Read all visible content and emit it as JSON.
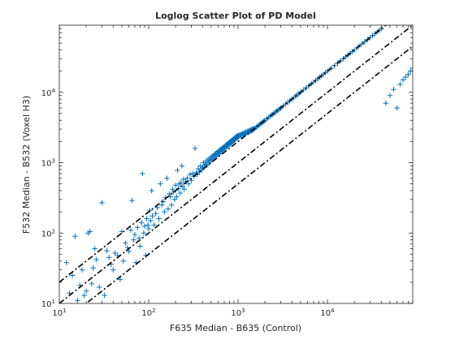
{
  "chart_data": {
    "type": "scatter",
    "title": "Loglog Scatter Plot of PD Model",
    "xlabel": "F635 Median - B635 (Control)",
    "ylabel": "F532 Median - B532 (Voxel H3)",
    "xscale": "log",
    "yscale": "log",
    "xlim": [
      10,
      90000
    ],
    "ylim": [
      10,
      90000
    ],
    "xticks": [
      {
        "value": 10,
        "base": "10",
        "exp": "1"
      },
      {
        "value": 100,
        "base": "10",
        "exp": "2"
      },
      {
        "value": 1000,
        "base": "10",
        "exp": "3"
      },
      {
        "value": 10000,
        "base": "10",
        "exp": "4"
      }
    ],
    "yticks": [
      {
        "value": 10,
        "base": "10",
        "exp": "1"
      },
      {
        "value": 100,
        "base": "10",
        "exp": "2"
      },
      {
        "value": 1000,
        "base": "10",
        "exp": "3"
      },
      {
        "value": 10000,
        "base": "10",
        "exp": "4"
      }
    ],
    "grid": false,
    "marker": "+",
    "series_color": "#0072bd",
    "line_color": "#000000",
    "fit_lines": [
      {
        "style": "dash-dot",
        "x": [
          10,
          90000
        ],
        "y": [
          10,
          90000
        ]
      },
      {
        "style": "dash-dot",
        "x": [
          10,
          90000
        ],
        "y": [
          20,
          180000
        ]
      },
      {
        "style": "dash-dot",
        "x": [
          10,
          90000
        ],
        "y": [
          5,
          45000
        ]
      }
    ],
    "series": [
      {
        "marker": "+",
        "points": [
          [
            12,
            38
          ],
          [
            13,
            14
          ],
          [
            14,
            25
          ],
          [
            15,
            90
          ],
          [
            16,
            11
          ],
          [
            17,
            18
          ],
          [
            18,
            30
          ],
          [
            19,
            13
          ],
          [
            20,
            15
          ],
          [
            21,
            100
          ],
          [
            22,
            105
          ],
          [
            23,
            19
          ],
          [
            24,
            32
          ],
          [
            25,
            60
          ],
          [
            26,
            42
          ],
          [
            28,
            17
          ],
          [
            30,
            270
          ],
          [
            32,
            13
          ],
          [
            34,
            56
          ],
          [
            36,
            45
          ],
          [
            38,
            36
          ],
          [
            40,
            30
          ],
          [
            42,
            52
          ],
          [
            45,
            48
          ],
          [
            48,
            22
          ],
          [
            50,
            105
          ],
          [
            52,
            40
          ],
          [
            55,
            72
          ],
          [
            58,
            62
          ],
          [
            60,
            55
          ],
          [
            63,
            110
          ],
          [
            65,
            290
          ],
          [
            68,
            80
          ],
          [
            70,
            95
          ],
          [
            72,
            38
          ],
          [
            75,
            120
          ],
          [
            78,
            85
          ],
          [
            80,
            65
          ],
          [
            83,
            140
          ],
          [
            85,
            700
          ],
          [
            88,
            100
          ],
          [
            90,
            125
          ],
          [
            93,
            48
          ],
          [
            95,
            160
          ],
          [
            98,
            130
          ],
          [
            100,
            115
          ],
          [
            103,
            210
          ],
          [
            105,
            150
          ],
          [
            108,
            400
          ],
          [
            110,
            175
          ],
          [
            115,
            130
          ],
          [
            120,
            190
          ],
          [
            125,
            230
          ],
          [
            130,
            160
          ],
          [
            135,
            500
          ],
          [
            140,
            250
          ],
          [
            145,
            280
          ],
          [
            150,
            200
          ],
          [
            155,
            320
          ],
          [
            160,
            600
          ],
          [
            165,
            220
          ],
          [
            170,
            360
          ],
          [
            175,
            330
          ],
          [
            180,
            250
          ],
          [
            185,
            420
          ],
          [
            190,
            380
          ],
          [
            195,
            300
          ],
          [
            200,
            480
          ],
          [
            205,
            330
          ],
          [
            210,
            780
          ],
          [
            215,
            430
          ],
          [
            220,
            500
          ],
          [
            225,
            370
          ],
          [
            230,
            520
          ],
          [
            235,
            900
          ],
          [
            240,
            460
          ],
          [
            245,
            580
          ],
          [
            250,
            420
          ],
          [
            260,
            540
          ],
          [
            270,
            600
          ],
          [
            280,
            500
          ],
          [
            290,
            680
          ],
          [
            300,
            560
          ],
          [
            310,
            700
          ],
          [
            320,
            640
          ],
          [
            330,
            1600
          ],
          [
            340,
            720
          ],
          [
            350,
            680
          ],
          [
            360,
            820
          ],
          [
            370,
            740
          ],
          [
            380,
            900
          ],
          [
            390,
            780
          ],
          [
            400,
            860
          ],
          [
            410,
            1000
          ],
          [
            420,
            880
          ],
          [
            430,
            950
          ],
          [
            440,
            1050
          ],
          [
            450,
            920
          ],
          [
            460,
            1100
          ],
          [
            470,
            1000
          ],
          [
            480,
            1150
          ],
          [
            490,
            1050
          ],
          [
            500,
            1200
          ],
          [
            510,
            1100
          ],
          [
            520,
            1250
          ],
          [
            530,
            1150
          ],
          [
            540,
            1300
          ],
          [
            550,
            1200
          ],
          [
            560,
            1350
          ],
          [
            570,
            1250
          ],
          [
            580,
            1400
          ],
          [
            590,
            1300
          ],
          [
            600,
            1450
          ],
          [
            610,
            1350
          ],
          [
            620,
            1500
          ],
          [
            630,
            1400
          ],
          [
            640,
            1550
          ],
          [
            650,
            1450
          ],
          [
            660,
            1600
          ],
          [
            670,
            1500
          ],
          [
            680,
            1650
          ],
          [
            690,
            1550
          ],
          [
            700,
            1700
          ],
          [
            710,
            1600
          ],
          [
            720,
            1750
          ],
          [
            730,
            1650
          ],
          [
            740,
            1800
          ],
          [
            750,
            1700
          ],
          [
            760,
            1850
          ],
          [
            770,
            1750
          ],
          [
            780,
            1900
          ],
          [
            790,
            1800
          ],
          [
            800,
            1950
          ],
          [
            810,
            1850
          ],
          [
            820,
            2000
          ],
          [
            830,
            1900
          ],
          [
            840,
            2050
          ],
          [
            850,
            1950
          ],
          [
            860,
            2100
          ],
          [
            870,
            2000
          ],
          [
            880,
            2150
          ],
          [
            890,
            2050
          ],
          [
            900,
            2200
          ],
          [
            910,
            2100
          ],
          [
            920,
            2250
          ],
          [
            930,
            2150
          ],
          [
            940,
            2300
          ],
          [
            950,
            2200
          ],
          [
            960,
            2350
          ],
          [
            970,
            2250
          ],
          [
            980,
            2400
          ],
          [
            990,
            2300
          ],
          [
            1000,
            2450
          ],
          [
            1020,
            2350
          ],
          [
            1040,
            2500
          ],
          [
            1060,
            2400
          ],
          [
            1080,
            2550
          ],
          [
            1100,
            2450
          ],
          [
            1120,
            2600
          ],
          [
            1140,
            2500
          ],
          [
            1160,
            2650
          ],
          [
            1180,
            2550
          ],
          [
            1200,
            2700
          ],
          [
            1220,
            2600
          ],
          [
            1240,
            2750
          ],
          [
            1260,
            2650
          ],
          [
            1280,
            2800
          ],
          [
            1300,
            2700
          ],
          [
            1320,
            2850
          ],
          [
            1340,
            2750
          ],
          [
            1360,
            2900
          ],
          [
            1380,
            2800
          ],
          [
            1400,
            2950
          ],
          [
            1420,
            2850
          ],
          [
            1440,
            3000
          ],
          [
            1460,
            2900
          ],
          [
            1480,
            3050
          ],
          [
            1500,
            2950
          ],
          [
            1550,
            3100
          ],
          [
            1600,
            3200
          ],
          [
            1650,
            3300
          ],
          [
            1700,
            3400
          ],
          [
            1750,
            3500
          ],
          [
            1800,
            3600
          ],
          [
            1850,
            3700
          ],
          [
            1900,
            3800
          ],
          [
            1950,
            3900
          ],
          [
            2000,
            4000
          ],
          [
            2100,
            4200
          ],
          [
            2200,
            4400
          ],
          [
            2300,
            4600
          ],
          [
            2400,
            4800
          ],
          [
            2500,
            5000
          ],
          [
            2600,
            5200
          ],
          [
            2700,
            5400
          ],
          [
            2800,
            5600
          ],
          [
            2900,
            5800
          ],
          [
            3000,
            6000
          ],
          [
            3200,
            6400
          ],
          [
            3400,
            6800
          ],
          [
            3600,
            7200
          ],
          [
            3800,
            7600
          ],
          [
            4000,
            8000
          ],
          [
            4200,
            8400
          ],
          [
            4400,
            8800
          ],
          [
            4600,
            9200
          ],
          [
            4800,
            9600
          ],
          [
            5000,
            10000
          ],
          [
            5400,
            10800
          ],
          [
            5800,
            11600
          ],
          [
            6200,
            12400
          ],
          [
            6600,
            13200
          ],
          [
            7000,
            14000
          ],
          [
            7400,
            14800
          ],
          [
            7800,
            15600
          ],
          [
            8200,
            16400
          ],
          [
            8600,
            17200
          ],
          [
            9000,
            18000
          ],
          [
            9500,
            19000
          ],
          [
            10000,
            20000
          ],
          [
            11000,
            22000
          ],
          [
            12000,
            24000
          ],
          [
            13000,
            26000
          ],
          [
            14000,
            28000
          ],
          [
            15000,
            30000
          ],
          [
            16000,
            32000
          ],
          [
            17000,
            34000
          ],
          [
            18000,
            36000
          ],
          [
            19000,
            38000
          ],
          [
            20000,
            40000
          ],
          [
            22000,
            44000
          ],
          [
            24000,
            48000
          ],
          [
            26000,
            52000
          ],
          [
            28000,
            56000
          ],
          [
            30000,
            60000
          ],
          [
            32000,
            64000
          ],
          [
            34000,
            68000
          ],
          [
            36000,
            72000
          ],
          [
            38000,
            76000
          ],
          [
            40000,
            80000
          ],
          [
            45000,
            7000
          ],
          [
            50000,
            9000
          ],
          [
            55000,
            11000
          ],
          [
            60000,
            6000
          ],
          [
            65000,
            13000
          ],
          [
            70000,
            15000
          ],
          [
            75000,
            16500
          ],
          [
            80000,
            18000
          ],
          [
            85000,
            20000
          ],
          [
            90000,
            22000
          ]
        ]
      }
    ]
  }
}
